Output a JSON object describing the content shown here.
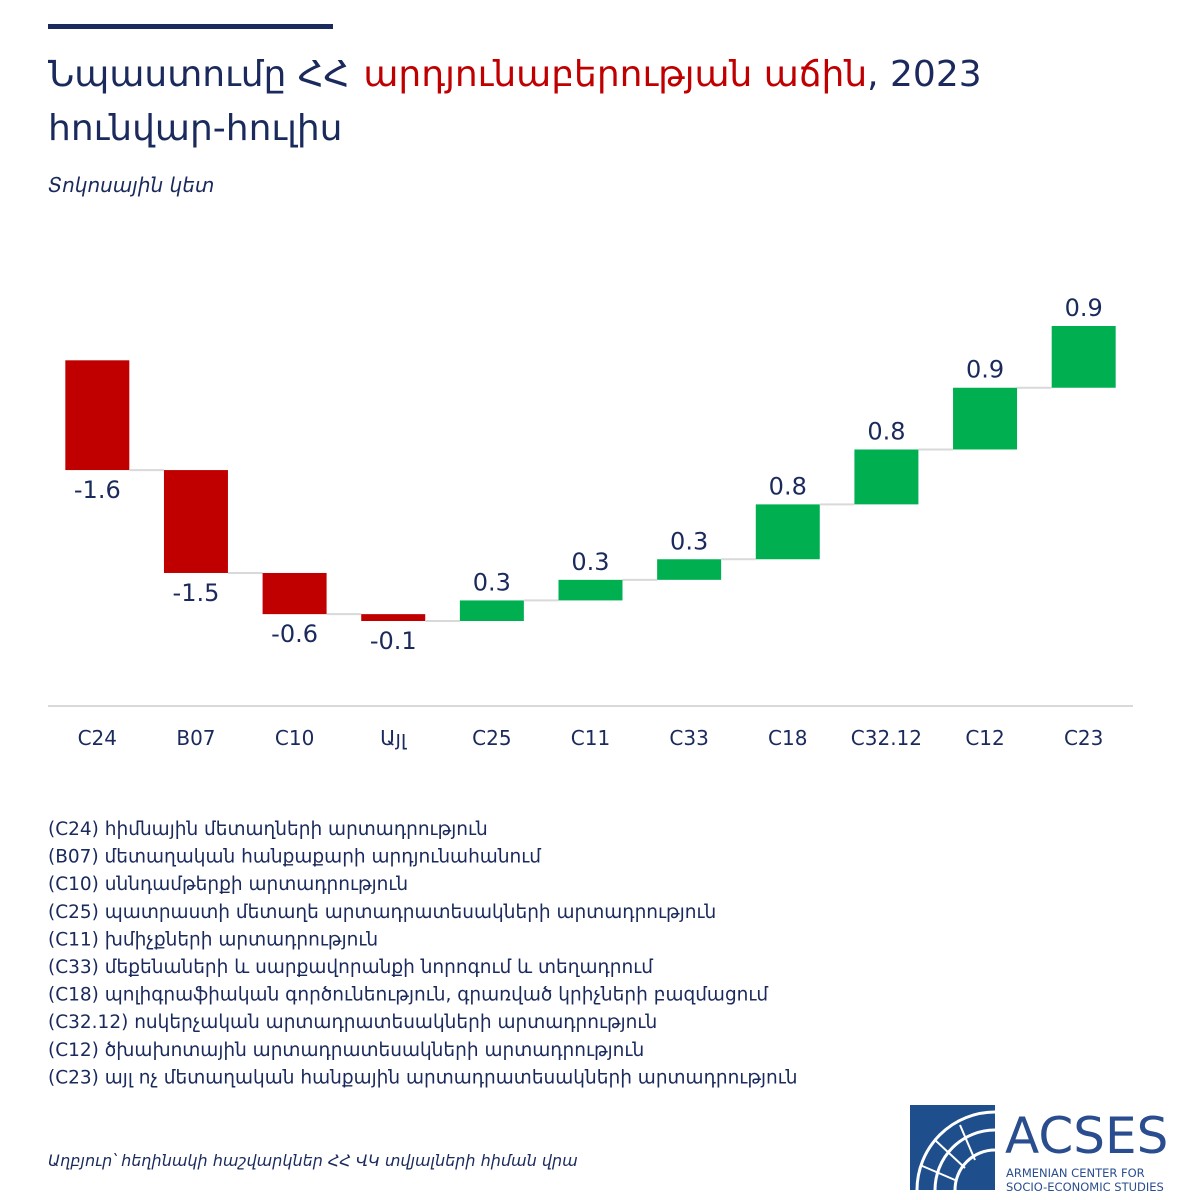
{
  "chart_data": {
    "type": "waterfall",
    "title": [
      "Նպաստումը ՀՀ",
      "արդյունաբերության աճին",
      ", 2023",
      "հունվար-հուլիս"
    ],
    "subtitle": "Տոկոսային կետ",
    "categories": [
      "C24",
      "B07",
      "C10",
      "Այլ",
      "C25",
      "C11",
      "C33",
      "C18",
      "C32.12",
      "C12",
      "C23"
    ],
    "values": [
      -1.6,
      -1.5,
      -0.6,
      -0.1,
      0.3,
      0.3,
      0.3,
      0.8,
      0.8,
      0.9,
      0.9
    ],
    "colors": {
      "negative": "#c00000",
      "positive": "#00b050"
    },
    "notes": [
      "(C24) հիմնային մետաղների արտադրություն",
      "(B07) մետաղական հանքաքարի արդյունահանում",
      "(C10) սննդամթերքի  արտադրություն",
      "(C25) պատրաստի մետաղե արտադրատեսակների արտադրություն",
      "(C11) խմիչքների արտադրություն",
      "(C33) մեքենաների և սարքավորանքի նորոգում և տեղադրում",
      "(C18) պոլիգրաֆիական գործունեություն, գրառված կրիչների բազմացում",
      "(C32.12) ոսկերչական արտադրատեսակների արտադրություն",
      "(C12) ծխախոտային արտադրատեսակների արտադրություն",
      "(C23) այլ ոչ մետաղական հանքային արտադրատեսակների արտադրություն"
    ],
    "source": "Աղբյուր՝ հեղինակի հաշվարկներ ՀՀ ՎԿ տվյալների հիման վրա",
    "logo": {
      "name": "ACSES",
      "subtitle": [
        "ARMENIAN CENTER FOR",
        "SOCIO-ECONOMIC STUDIES"
      ]
    }
  }
}
